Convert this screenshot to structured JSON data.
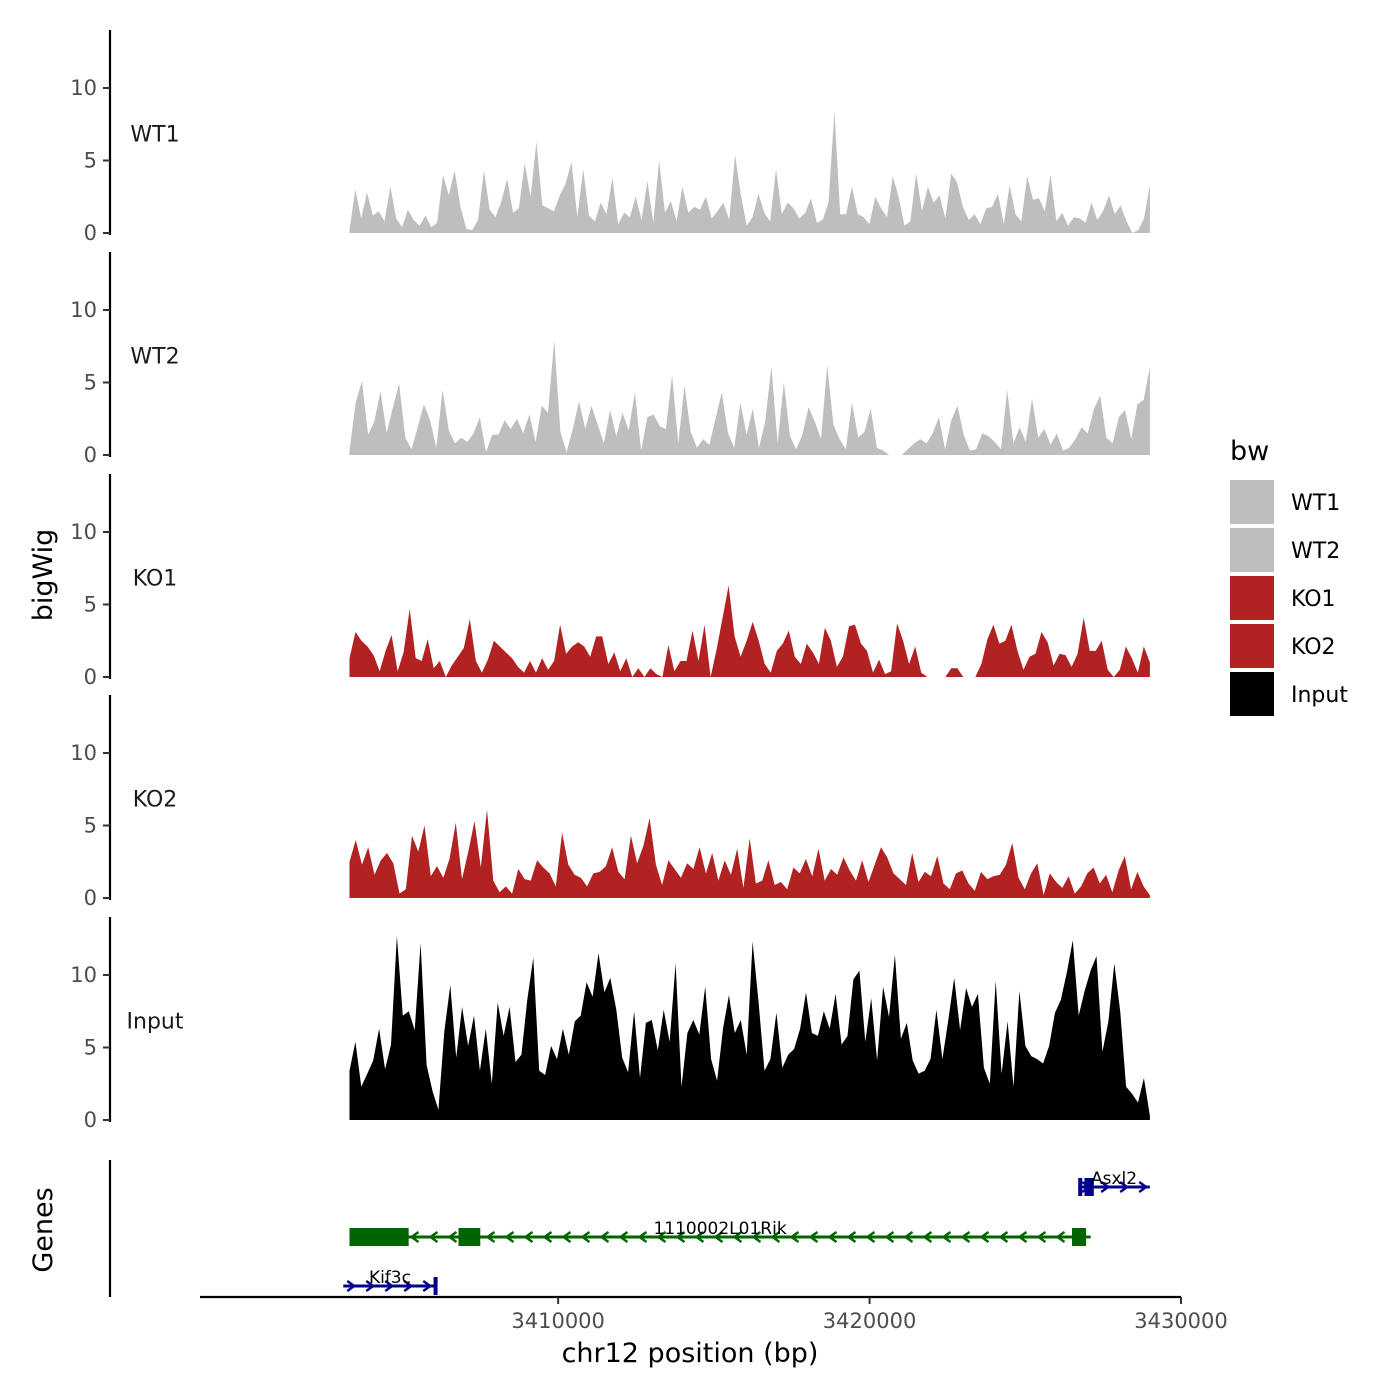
{
  "chart_data": {
    "type": "area",
    "xlabel": "chr12 position (bp)",
    "ylabel": "bigWig",
    "genes_label": "Genes",
    "x_range": [
      3403300,
      3429000
    ],
    "xlim": [
      3398500,
      3430000
    ],
    "x_ticks": [
      3410000,
      3420000,
      3430000
    ],
    "x_tick_labels": [
      "3410000",
      "3420000",
      "3430000"
    ],
    "ylim": [
      0,
      14
    ],
    "y_ticks": [
      0,
      5,
      10
    ],
    "y_tick_labels": [
      "0",
      "5",
      "10"
    ],
    "legend": {
      "title": "bw",
      "entries": [
        {
          "label": "WT1",
          "color": "#BEBEBE"
        },
        {
          "label": "WT2",
          "color": "#BEBEBE"
        },
        {
          "label": "KO1",
          "color": "#B22222"
        },
        {
          "label": "KO2",
          "color": "#B22222"
        },
        {
          "label": "Input",
          "color": "#000000"
        }
      ]
    },
    "series": [
      {
        "name": "WT1",
        "color": "#BEBEBE",
        "values": [
          0.2,
          3,
          1,
          2.8,
          1.2,
          1.5,
          0.8,
          3.2,
          1,
          0.4,
          1.6,
          0.9,
          0.5,
          1.2,
          0.4,
          0.7,
          4,
          2.6,
          4.3,
          1.8,
          0.3,
          0.2,
          0.9,
          4.3,
          1.6,
          1.1,
          2.2,
          3.7,
          1.4,
          1.7,
          4.8,
          2.5,
          6.3,
          1.9,
          1.7,
          1.5,
          2.6,
          3.4,
          4.9,
          1.1,
          4.4,
          1.2,
          0.8,
          2.1,
          1.3,
          3.8,
          0.6,
          1.4,
          1.1,
          2.5,
          0.9,
          3.6,
          0.7,
          5,
          1.4,
          2.2,
          0.8,
          3.2,
          1.4,
          1.8,
          1.6,
          2.5,
          1,
          1.5,
          2.1,
          0.9,
          5.4,
          2.6,
          0.5,
          1.1,
          2.7,
          1.4,
          0.8,
          4.4,
          1.3,
          2.1,
          1.7,
          1,
          1.4,
          2.4,
          0.7,
          0.9,
          2.1,
          8.4,
          1.3,
          1.3,
          3.2,
          1.3,
          1.1,
          0.6,
          2.5,
          1.7,
          1.1,
          3.9,
          2.5,
          0.5,
          0.8,
          4.1,
          1.5,
          3.2,
          2.1,
          2.6,
          1,
          4.1,
          3.5,
          1.8,
          0.9,
          1.3,
          0.6,
          1.7,
          1.8,
          2.7,
          0.6,
          3.3,
          1.3,
          0.8,
          3.9,
          2.3,
          2.4,
          1.5,
          4,
          0.8,
          1.4,
          0.5,
          1.1,
          1,
          0.7,
          2.1,
          0.9,
          1.5,
          2.6,
          1.3,
          1.9,
          0.8,
          0,
          0.2,
          1,
          3.3
        ]
      },
      {
        "name": "WT2",
        "color": "#BEBEBE",
        "values": [
          0.3,
          3.6,
          5.1,
          1.4,
          2.3,
          4.4,
          1.5,
          3.3,
          4.9,
          1.2,
          0.4,
          1.9,
          3.5,
          2.4,
          0.5,
          4.5,
          1.7,
          0.8,
          1.2,
          0.9,
          1.5,
          2.6,
          0.2,
          1.4,
          1.4,
          2.4,
          1.8,
          2.5,
          1.5,
          2.8,
          0.9,
          3.4,
          2.9,
          7.9,
          1.6,
          0.2,
          1.8,
          3.7,
          1.8,
          3.4,
          2.1,
          0.8,
          3.1,
          1.3,
          2.9,
          1.7,
          4.3,
          0.3,
          2.6,
          2.8,
          2,
          1.8,
          5.5,
          0.8,
          4.8,
          1.6,
          0.5,
          1.1,
          0.7,
          2.5,
          4.3,
          1.5,
          0.5,
          3.6,
          1.4,
          3.2,
          0.5,
          2.3,
          6.1,
          0.8,
          5,
          1.3,
          0.4,
          1.4,
          3.3,
          2.3,
          1.1,
          6.2,
          2.1,
          1.1,
          0.4,
          3.6,
          1.2,
          1.6,
          3.2,
          0.5,
          0.3,
          0,
          0,
          0,
          0.4,
          0.8,
          1.1,
          0.8,
          1.5,
          2.6,
          0.4,
          2.4,
          3.4,
          1.4,
          0.3,
          0.4,
          1.5,
          1.3,
          0.9,
          0.4,
          4.5,
          0.8,
          1.9,
          0.9,
          3.9,
          1.2,
          1.8,
          0.7,
          1.5,
          0.3,
          0.5,
          1.1,
          1.9,
          1.5,
          3.2,
          4.1,
          1.2,
          0.8,
          2.6,
          3.1,
          1.1,
          3.5,
          3.8,
          6.1
        ]
      },
      {
        "name": "KO1",
        "color": "#B22222",
        "values": [
          1.3,
          3.1,
          2.5,
          2.1,
          1.5,
          0.4,
          1.8,
          2.9,
          0.4,
          1.7,
          4.7,
          1.3,
          1.1,
          2.6,
          0.6,
          1.1,
          0,
          0.8,
          1.4,
          2,
          4,
          1.1,
          0.3,
          1.2,
          2.5,
          2.1,
          1.7,
          1.3,
          0.7,
          0.3,
          1.1,
          0.3,
          1.3,
          0.5,
          1.1,
          3.6,
          1.6,
          2.1,
          2.4,
          2.1,
          1.4,
          2.8,
          2.8,
          0.9,
          1.7,
          0.4,
          1.3,
          0,
          0.6,
          0,
          0.6,
          0.2,
          0,
          2.2,
          0.4,
          1.1,
          1.1,
          3.2,
          1.1,
          3.6,
          0,
          1.9,
          4.1,
          6.3,
          2.8,
          1.4,
          2.5,
          3.8,
          2.5,
          0.9,
          0.3,
          1.8,
          2.3,
          3.2,
          1.4,
          0.9,
          2.3,
          1.7,
          0.9,
          3.4,
          2.5,
          0.7,
          1.4,
          3.5,
          3.6,
          2.3,
          1.8,
          0.3,
          1.2,
          0.2,
          0.4,
          3.7,
          2.5,
          0.9,
          2.1,
          0.3,
          0,
          0,
          0,
          0,
          0.6,
          0.6,
          0,
          0,
          0,
          0.9,
          2.6,
          3.6,
          2.3,
          2.5,
          3.6,
          1.8,
          0.5,
          1.4,
          1.6,
          3.1,
          2.4,
          0.8,
          1.6,
          1.5,
          0.7,
          1.6,
          4.1,
          1.8,
          1.8,
          2.5,
          0.5,
          0,
          0.5,
          2.1,
          1.3,
          0.3,
          2.1,
          1
        ]
      },
      {
        "name": "KO2",
        "color": "#B22222",
        "values": [
          2.5,
          4,
          2.3,
          3.5,
          1.6,
          2.6,
          3.1,
          2.4,
          0.3,
          0.6,
          4.3,
          3.2,
          5,
          1.5,
          2.2,
          1.4,
          2.7,
          5.2,
          1.3,
          3.2,
          5.3,
          2.1,
          6.1,
          1.2,
          0.4,
          0.8,
          0.3,
          2,
          1.3,
          1.2,
          2.6,
          2.1,
          1.7,
          0.8,
          4.5,
          2.3,
          1.6,
          1.4,
          0.8,
          1.7,
          1.8,
          2.2,
          3.5,
          1.8,
          1.3,
          4.3,
          2.4,
          3.6,
          5.5,
          2.3,
          0.9,
          2.6,
          2,
          1.4,
          2.4,
          2,
          3.5,
          1.7,
          3.1,
          1.2,
          2.6,
          1.6,
          3.4,
          0.7,
          4.1,
          1,
          1.2,
          2.6,
          0.9,
          1.1,
          0.6,
          2.1,
          1.7,
          2.7,
          1.5,
          3.4,
          1.2,
          2,
          1.6,
          2.8,
          1.9,
          1.2,
          2.6,
          1.1,
          2.3,
          3.5,
          2.8,
          1.7,
          1.3,
          0.9,
          3.1,
          1.1,
          1.8,
          1.5,
          2.9,
          1,
          0.6,
          1.7,
          1.9,
          1,
          0.5,
          1.8,
          1.3,
          1.5,
          1.6,
          2.3,
          3.8,
          1.4,
          0.6,
          1.7,
          2.4,
          0.2,
          1.7,
          1.1,
          0.7,
          1.5,
          0.3,
          0.8,
          1.7,
          2.1,
          1,
          1.6,
          0.4,
          1.9,
          2.9,
          0.6,
          1.8,
          0.8,
          0.2
        ]
      },
      {
        "name": "Input",
        "color": "#000000",
        "values": [
          3.4,
          5.4,
          2.3,
          3.2,
          4.1,
          6.3,
          3.5,
          5.2,
          12.7,
          7.2,
          7.5,
          6.2,
          12.2,
          3.8,
          2,
          0.7,
          6.1,
          9.3,
          4.3,
          7.8,
          5.1,
          7.2,
          3.4,
          6.3,
          2.5,
          8.1,
          5.8,
          7.8,
          4,
          4.5,
          8.3,
          11.2,
          3.4,
          3.1,
          5.1,
          4.2,
          6.3,
          4.5,
          6.8,
          7.2,
          9.5,
          8.5,
          11.5,
          8.8,
          9.8,
          7.6,
          4.3,
          3.3,
          7.5,
          2.9,
          6.7,
          6.9,
          4.8,
          7.6,
          5.4,
          10.8,
          2.3,
          6,
          6.9,
          5.9,
          9.2,
          4.2,
          2.7,
          6.3,
          8.6,
          6,
          6.9,
          4.5,
          12.3,
          8.1,
          3.4,
          4.2,
          7.4,
          3.6,
          4.5,
          4.9,
          6.3,
          8.8,
          6,
          5.8,
          7.5,
          6.3,
          8.7,
          5.2,
          5.8,
          9.7,
          10.3,
          5.4,
          8.4,
          4.1,
          9.2,
          7.1,
          11.4,
          5.6,
          6.7,
          4.1,
          3.2,
          3.4,
          4.2,
          7.6,
          4.2,
          6.9,
          9.8,
          6.2,
          9.1,
          7.8,
          8.7,
          3.6,
          2.5,
          9.6,
          3.2,
          6.8,
          2.3,
          8.9,
          5.1,
          4.4,
          4.2,
          3.9,
          5.1,
          7.4,
          8.3,
          10.2,
          12.4,
          7.2,
          8.9,
          10.3,
          11.3,
          4.7,
          6.8,
          10.8,
          7.5,
          2.3,
          1.8,
          1.2,
          2.9,
          0.3
        ]
      }
    ],
    "genes": [
      {
        "name": "Asxl2",
        "strand": "+",
        "color": "#00008B",
        "start": 3426700,
        "end": 3429000,
        "row": 0,
        "exons": [
          [
            3426700,
            3426750
          ],
          [
            3426900,
            3427200
          ]
        ]
      },
      {
        "name": "1110002L01Rik",
        "strand": "-",
        "color": "#006400",
        "start": 3403300,
        "end": 3427100,
        "row": 1,
        "exons": [
          [
            3403300,
            3405200
          ],
          [
            3406800,
            3407500
          ],
          [
            3426500,
            3426950
          ]
        ]
      },
      {
        "name": "Kif3c",
        "strand": "+",
        "color": "#00008B",
        "start": 3403100,
        "end": 3406100,
        "row": 2,
        "exons": [
          [
            3406000,
            3406100
          ]
        ]
      }
    ]
  }
}
